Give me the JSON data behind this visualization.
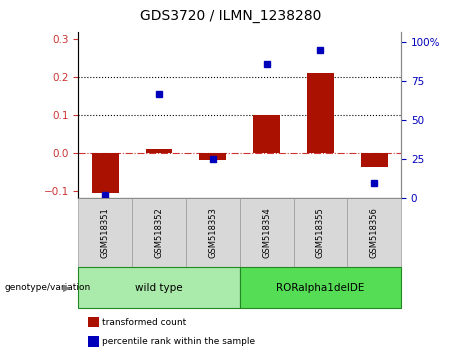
{
  "title": "GDS3720 / ILMN_1238280",
  "samples": [
    "GSM518351",
    "GSM518352",
    "GSM518353",
    "GSM518354",
    "GSM518355",
    "GSM518356"
  ],
  "transformed_counts": [
    -0.105,
    0.01,
    -0.018,
    0.1,
    0.21,
    -0.038
  ],
  "percentile_ranks": [
    2,
    67,
    25,
    86,
    95,
    10
  ],
  "ylim_left": [
    -0.12,
    0.32
  ],
  "ylim_right": [
    0,
    106.67
  ],
  "yticks_left": [
    -0.1,
    0.0,
    0.1,
    0.2,
    0.3
  ],
  "yticks_right": [
    0,
    25,
    50,
    75,
    100
  ],
  "ytick_labels_right": [
    "0",
    "25",
    "50",
    "75",
    "100%"
  ],
  "hlines": [
    0.1,
    0.2
  ],
  "zero_line_color": "#cc3333",
  "bar_color": "#aa1100",
  "dot_color": "#0000bb",
  "bar_width": 0.5,
  "groups": [
    {
      "label": "wild type",
      "indices": [
        0,
        1,
        2
      ],
      "color": "#aaeaaa"
    },
    {
      "label": "RORalpha1delDE",
      "indices": [
        3,
        4,
        5
      ],
      "color": "#55dd55"
    }
  ],
  "group_label": "genotype/variation",
  "legend_items": [
    {
      "label": "transformed count",
      "color": "#aa1100"
    },
    {
      "label": "percentile rank within the sample",
      "color": "#0000bb"
    }
  ],
  "tick_color_left": "#cc3333",
  "tick_color_right": "#0000bb",
  "bg_color": "#d8d8d8",
  "plot_bg": "#ffffff",
  "title_fontsize": 10
}
